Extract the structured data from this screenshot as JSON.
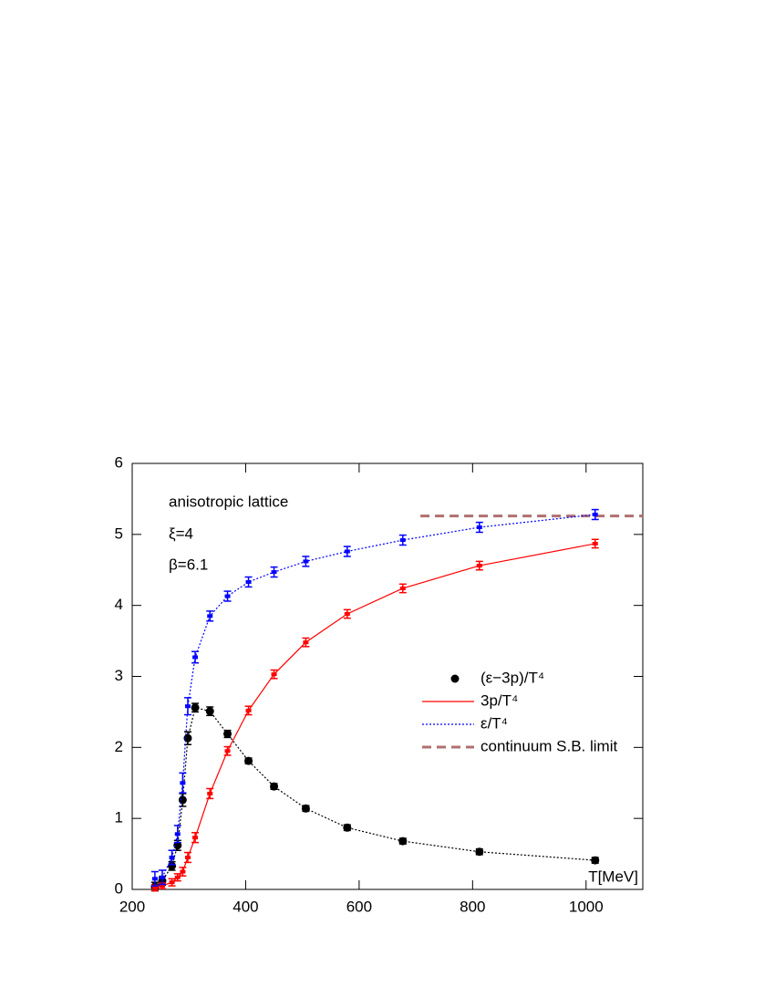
{
  "chart_data": {
    "type": "errorbar_line",
    "annotations": [
      "anisotropic lattice",
      "ξ=4",
      "β=6.1"
    ],
    "x_label": "T[MeV]",
    "xlim": [
      200,
      1100
    ],
    "xticks": [
      200,
      400,
      600,
      800,
      1000
    ],
    "ylim": [
      0,
      6
    ],
    "yticks": [
      0,
      1,
      2,
      3,
      4,
      5,
      6
    ],
    "x": [
      240,
      253,
      270,
      280,
      289,
      298,
      311,
      337,
      368,
      405,
      450,
      506,
      579,
      677,
      812,
      1016
    ],
    "series": [
      {
        "name": "(ε−3p)/T⁴",
        "color": "#000000",
        "marker": "circle",
        "line_style": "dotted",
        "values": [
          0.04,
          0.12,
          0.33,
          0.62,
          1.26,
          2.13,
          2.56,
          2.51,
          2.19,
          1.81,
          1.45,
          1.14,
          0.87,
          0.68,
          0.53,
          0.41
        ],
        "errors": [
          0.06,
          0.06,
          0.06,
          0.07,
          0.09,
          0.09,
          0.06,
          0.06,
          0.05,
          0.04,
          0.04,
          0.04,
          0.04,
          0.04,
          0.04,
          0.04
        ]
      },
      {
        "name": "3p/T⁴",
        "color": "#ff0000",
        "marker": "bar",
        "line_style": "solid",
        "values": [
          0.02,
          0.05,
          0.1,
          0.17,
          0.25,
          0.45,
          0.73,
          1.35,
          1.95,
          2.52,
          3.03,
          3.48,
          3.88,
          4.24,
          4.56,
          4.87
        ],
        "errors": [
          0.04,
          0.04,
          0.05,
          0.05,
          0.06,
          0.07,
          0.07,
          0.07,
          0.06,
          0.06,
          0.06,
          0.06,
          0.06,
          0.06,
          0.06,
          0.06
        ]
      },
      {
        "name": "ε/T⁴",
        "color": "#0000ff",
        "marker": "bar",
        "line_style": "dotted",
        "values": [
          0.15,
          0.17,
          0.45,
          0.78,
          1.5,
          2.58,
          3.27,
          3.85,
          4.13,
          4.33,
          4.47,
          4.62,
          4.76,
          4.92,
          5.1,
          5.28
        ],
        "errors": [
          0.1,
          0.1,
          0.1,
          0.12,
          0.14,
          0.12,
          0.08,
          0.07,
          0.07,
          0.07,
          0.07,
          0.07,
          0.07,
          0.07,
          0.07,
          0.07
        ]
      }
    ],
    "reference_line": {
      "name": "continuum S.B. limit",
      "color": "#b07070",
      "value": 5.26,
      "x": [
        708,
        1100
      ]
    }
  }
}
